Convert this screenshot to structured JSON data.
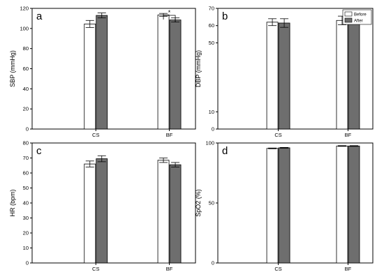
{
  "colors": {
    "before": "#ffffff",
    "after": "#6e6e6e",
    "stroke": "#000000"
  },
  "chart_data": [
    {
      "type": "bar",
      "panel": "a",
      "categories": [
        "CS",
        "BF"
      ],
      "ylabel": "SBP (mmHg)",
      "ylim": [
        0,
        120
      ],
      "yticks": [
        0,
        20,
        40,
        60,
        80,
        100,
        120
      ],
      "series": [
        {
          "name": "Before",
          "values": [
            104.5,
            113.5
          ],
          "errors": [
            3.5,
            1.5
          ]
        },
        {
          "name": "After",
          "values": [
            113.0,
            108.5
          ],
          "errors": [
            2.5,
            2.0
          ]
        }
      ],
      "annotations": [
        {
          "text": "*",
          "category": "BF"
        }
      ]
    },
    {
      "type": "bar",
      "panel": "b",
      "categories": [
        "CS",
        "BF"
      ],
      "ylabel": "DBP (mmHg)",
      "ylim": [
        0,
        70
      ],
      "yticks": [
        0,
        10,
        50,
        60,
        70
      ],
      "legend": {
        "position": "top-right",
        "entries": [
          "Before",
          "After"
        ]
      },
      "series": [
        {
          "name": "Before",
          "values": [
            62.0,
            63.0
          ],
          "errors": [
            2.0,
            2.5
          ]
        },
        {
          "name": "After",
          "values": [
            61.5,
            63.5
          ],
          "errors": [
            2.5,
            1.5
          ]
        }
      ]
    },
    {
      "type": "bar",
      "panel": "c",
      "categories": [
        "CS",
        "BF"
      ],
      "ylabel": "HR (bpm)",
      "ylim": [
        0,
        80
      ],
      "yticks": [
        0,
        10,
        20,
        30,
        40,
        50,
        60,
        70,
        80
      ],
      "series": [
        {
          "name": "Before",
          "values": [
            66.0,
            68.5
          ],
          "errors": [
            2.0,
            1.5
          ]
        },
        {
          "name": "After",
          "values": [
            69.5,
            65.5
          ],
          "errors": [
            2.0,
            1.5
          ]
        }
      ]
    },
    {
      "type": "bar",
      "panel": "d",
      "categories": [
        "CS",
        "BF"
      ],
      "ylabel": "SpO2 (%)",
      "ylim": [
        0,
        100
      ],
      "yticks": [
        0,
        50,
        100
      ],
      "series": [
        {
          "name": "Before",
          "values": [
            95.5,
            97.5
          ],
          "errors": [
            0.3,
            0.3
          ]
        },
        {
          "name": "After",
          "values": [
            96.0,
            97.5
          ],
          "errors": [
            0.3,
            0.3
          ]
        }
      ]
    }
  ]
}
